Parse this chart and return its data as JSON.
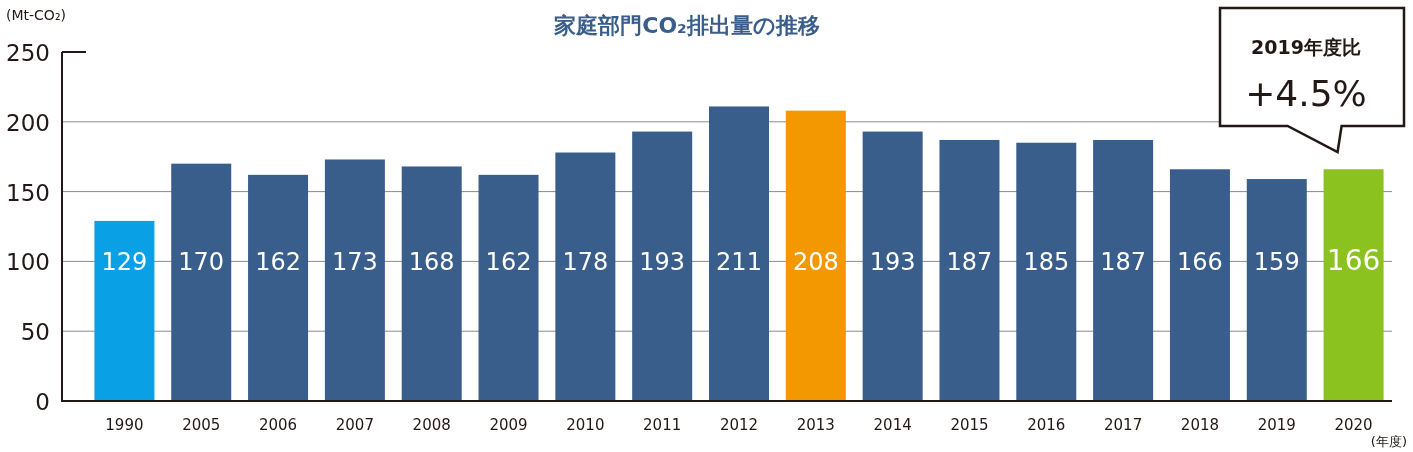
{
  "chart_data": {
    "type": "bar",
    "title": "家庭部門CO₂排出量の推移",
    "ylabel": "(Mt-CO₂)",
    "xlabel": "(年度)",
    "categories": [
      "1990",
      "2005",
      "2006",
      "2007",
      "2008",
      "2009",
      "2010",
      "2011",
      "2012",
      "2013",
      "2014",
      "2015",
      "2016",
      "2017",
      "2018",
      "2019",
      "2020"
    ],
    "values": [
      129,
      170,
      162,
      173,
      168,
      162,
      178,
      193,
      211,
      208,
      193,
      187,
      185,
      187,
      166,
      159,
      166
    ],
    "colors": [
      "#0aa0e6",
      "#3a5e8c",
      "#3a5e8c",
      "#3a5e8c",
      "#3a5e8c",
      "#3a5e8c",
      "#3a5e8c",
      "#3a5e8c",
      "#3a5e8c",
      "#f39800",
      "#3a5e8c",
      "#3a5e8c",
      "#3a5e8c",
      "#3a5e8c",
      "#3a5e8c",
      "#3a5e8c",
      "#8cc21f"
    ],
    "ylim": [
      0,
      250
    ],
    "yticks": [
      0,
      50,
      100,
      150,
      200,
      250
    ],
    "grid": "y",
    "data_labels": true,
    "annotations": [
      "2019年度比",
      "+4.5%"
    ]
  }
}
